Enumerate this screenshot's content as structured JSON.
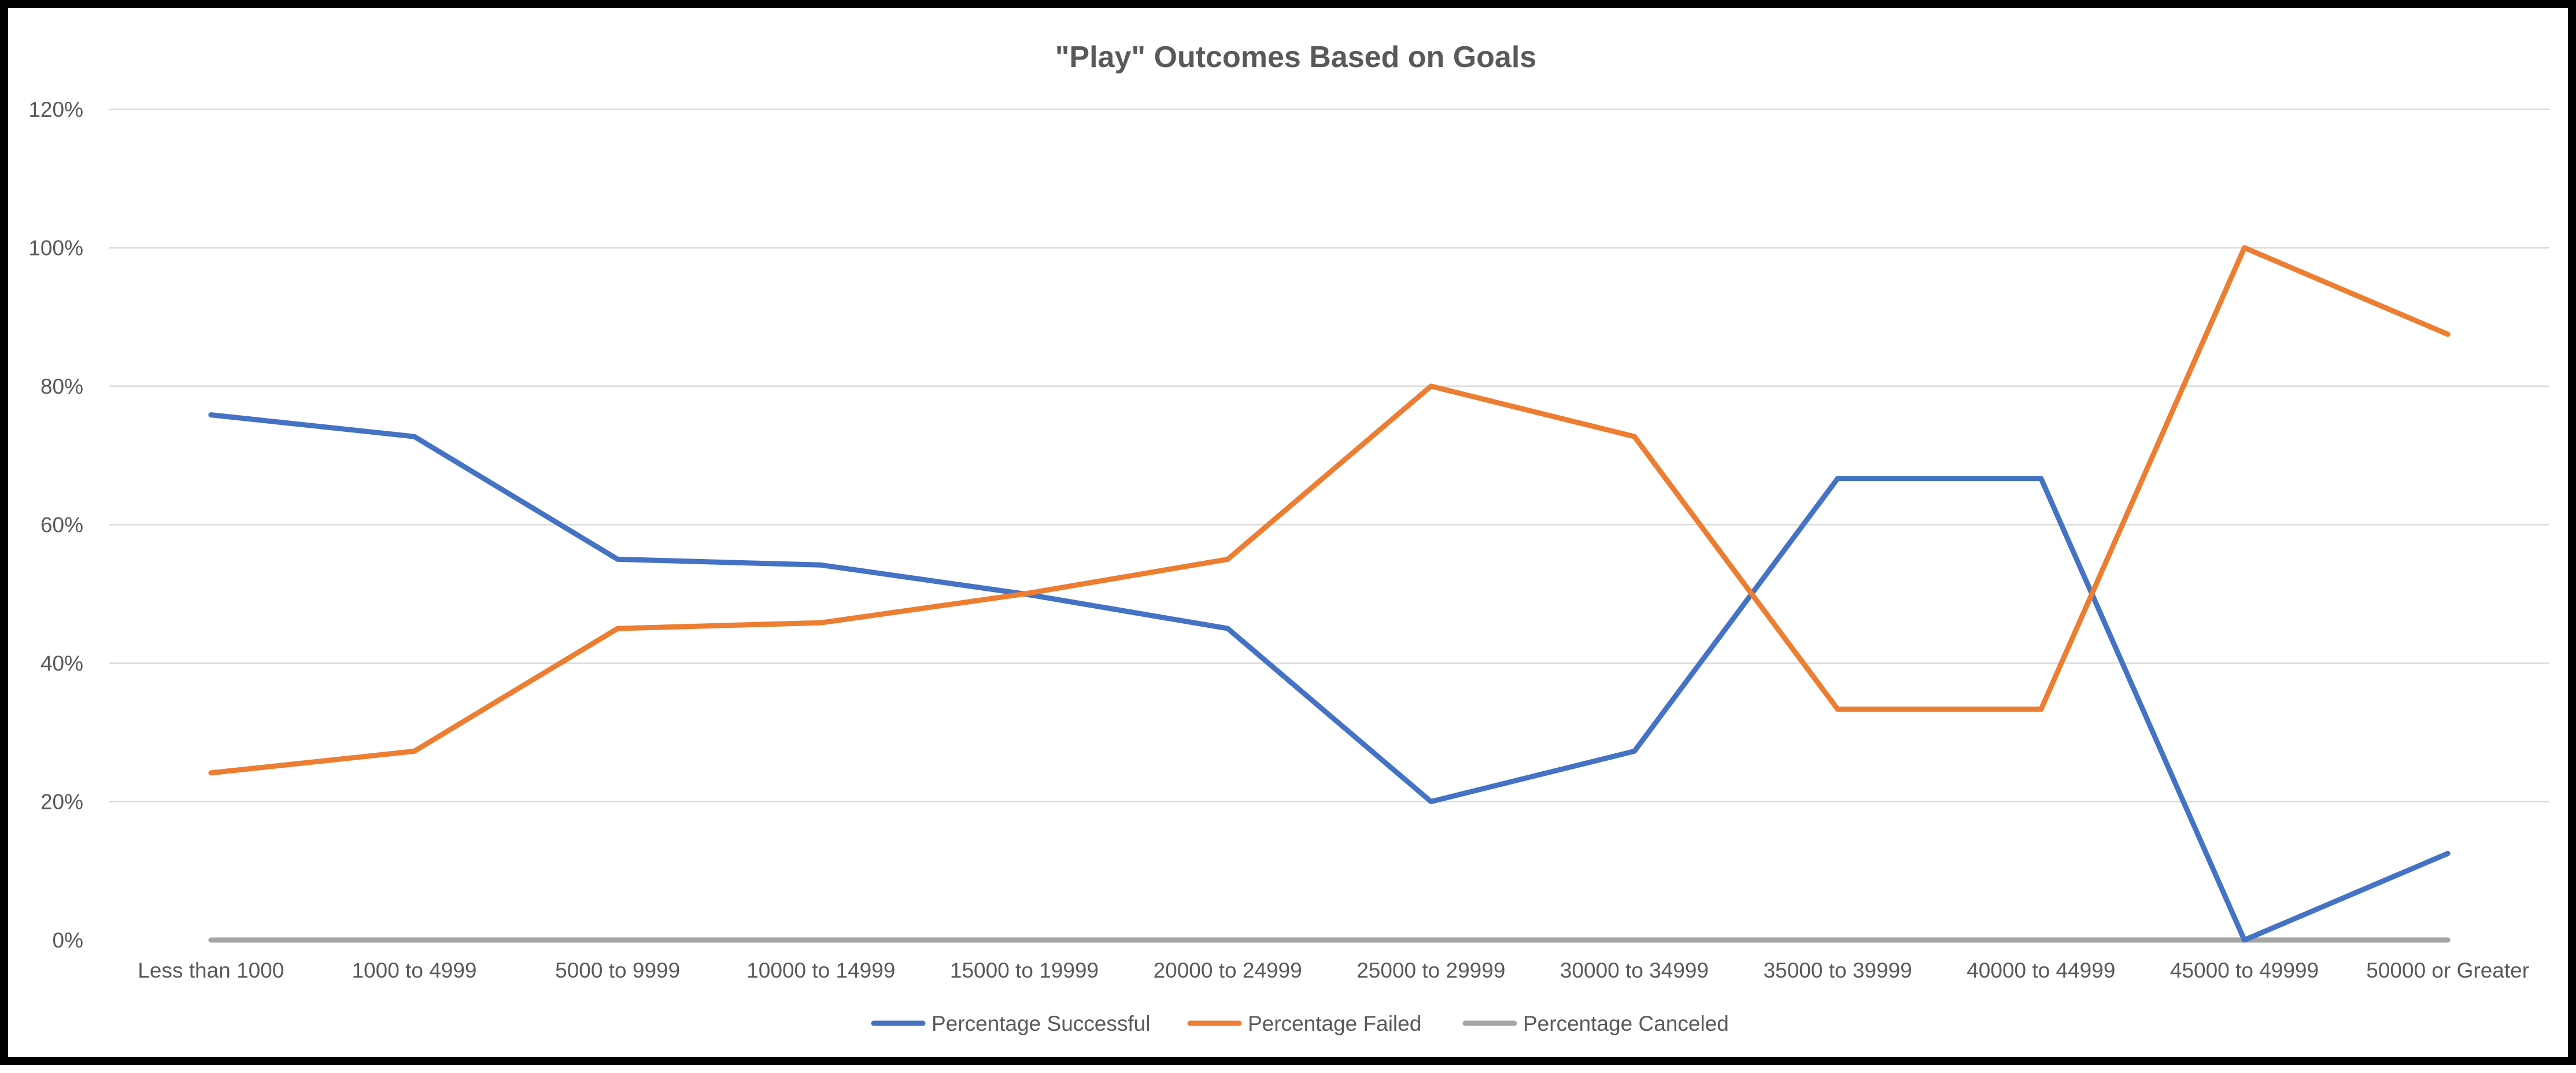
{
  "chart_data": {
    "type": "line",
    "title": "\"Play\" Outcomes Based on Goals",
    "xlabel": "",
    "ylabel": "",
    "categories": [
      "Less than 1000",
      "1000 to 4999",
      "5000 to 9999",
      "10000 to 14999",
      "15000 to 19999",
      "20000 to 24999",
      "25000 to 29999",
      "30000 to 34999",
      "35000 to 39999",
      "40000 to 44999",
      "45000 to 49999",
      "50000 or Greater"
    ],
    "ylim": [
      0,
      1.2
    ],
    "y_ticks": [
      0,
      0.2,
      0.4,
      0.6,
      0.8,
      1.0,
      1.2
    ],
    "y_tick_labels": [
      "0%",
      "20%",
      "40%",
      "60%",
      "80%",
      "100%",
      "120%"
    ],
    "grid": true,
    "legend_position": "bottom",
    "series": [
      {
        "name": "Percentage Successful",
        "color": "#4472C4",
        "values": [
          0.7586,
          0.7273,
          0.55,
          0.5417,
          0.5,
          0.45,
          0.2,
          0.2727,
          0.6667,
          0.6667,
          0.0,
          0.125
        ]
      },
      {
        "name": "Percentage Failed",
        "color": "#ED7D31",
        "values": [
          0.2414,
          0.2727,
          0.45,
          0.4583,
          0.5,
          0.55,
          0.8,
          0.7273,
          0.3333,
          0.3333,
          1.0,
          0.875
        ]
      },
      {
        "name": "Percentage Canceled",
        "color": "#A5A5A5",
        "values": [
          0,
          0,
          0,
          0,
          0,
          0,
          0,
          0,
          0,
          0,
          0,
          0
        ]
      }
    ]
  }
}
